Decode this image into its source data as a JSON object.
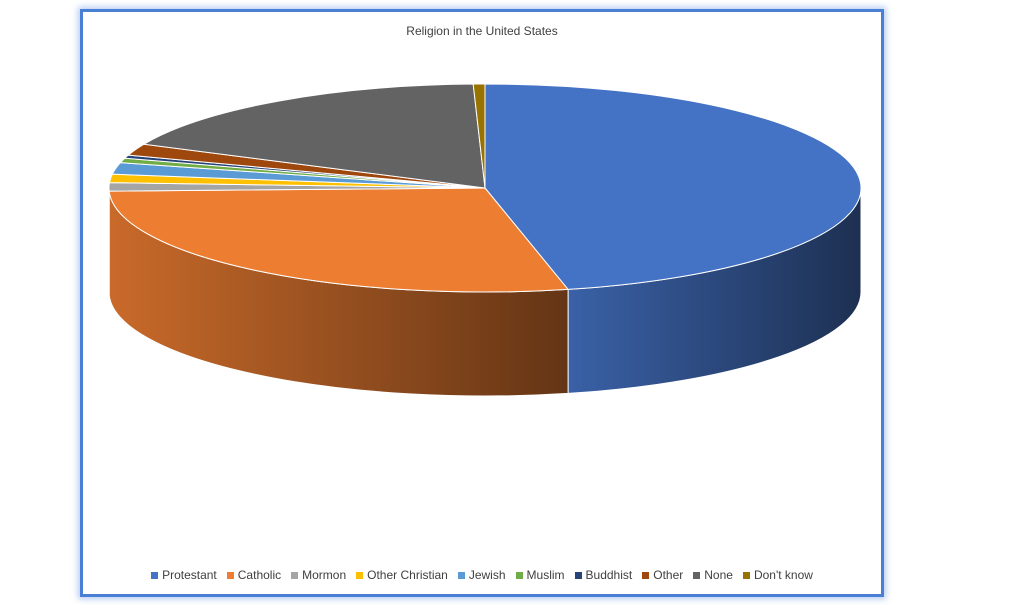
{
  "chart_data": {
    "type": "pie",
    "style": "3d",
    "title": "Religion in the United States",
    "legend_position": "bottom",
    "slices": [
      {
        "label": "Protestant",
        "value": 46.5,
        "color": "#4472c4"
      },
      {
        "label": "Catholic",
        "value": 28.1,
        "color": "#ed7d31"
      },
      {
        "label": "Mormon",
        "value": 1.3,
        "color": "#a5a5a5"
      },
      {
        "label": "Other Christian",
        "value": 1.3,
        "color": "#ffc000"
      },
      {
        "label": "Jewish",
        "value": 1.8,
        "color": "#5b9bd5"
      },
      {
        "label": "Muslim",
        "value": 0.7,
        "color": "#70ad47"
      },
      {
        "label": "Buddhist",
        "value": 0.5,
        "color": "#264478"
      },
      {
        "label": "Other",
        "value": 1.8,
        "color": "#9e480e"
      },
      {
        "label": "None",
        "value": 17.6,
        "color": "#636363"
      },
      {
        "label": "Don't know",
        "value": 0.5,
        "color": "#997300"
      }
    ]
  }
}
